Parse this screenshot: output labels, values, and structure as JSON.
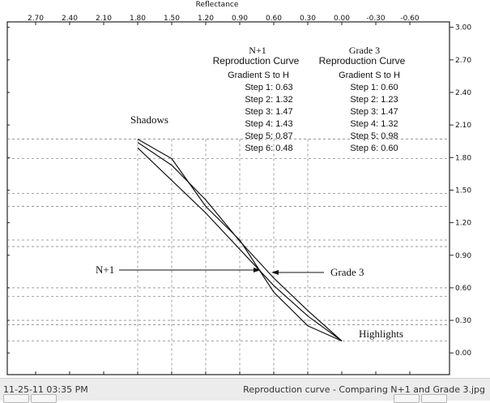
{
  "chart_data": {
    "type": "line",
    "top_axis_label": "Reflectance",
    "x_ticks": [
      "2.70",
      "2.40",
      "2.10",
      "1.80",
      "1.50",
      "1.20",
      "0.90",
      "0.60",
      "0.30",
      "0.00",
      "-0.30",
      "-0.60"
    ],
    "y_ticks": [
      "3.00",
      "2.70",
      "2.40",
      "2.10",
      "1.80",
      "1.50",
      "1.20",
      "0.90",
      "0.60",
      "0.30",
      "0.00"
    ],
    "xlim": [
      2.95,
      -0.95
    ],
    "ylim": [
      -0.2,
      3.05
    ],
    "grid": "dashed reference lines",
    "series": [
      {
        "name": "N+1",
        "points": [
          [
            1.8,
            1.97
          ],
          [
            1.5,
            1.79
          ],
          [
            1.2,
            1.35
          ],
          [
            0.9,
            1.04
          ],
          [
            0.6,
            0.56
          ],
          [
            0.3,
            0.25
          ],
          [
            0.0,
            0.11
          ]
        ]
      },
      {
        "name": "Grade 3",
        "points": [
          [
            1.8,
            1.94
          ],
          [
            1.5,
            1.73
          ],
          [
            1.2,
            1.41
          ],
          [
            0.9,
            1.03
          ],
          [
            0.6,
            0.69
          ],
          [
            0.3,
            0.39
          ],
          [
            0.0,
            0.11
          ]
        ]
      },
      {
        "name": "",
        "points": [
          [
            1.8,
            1.89
          ],
          [
            1.2,
            1.29
          ],
          [
            0.6,
            0.62
          ],
          [
            0.3,
            0.34
          ],
          [
            0.0,
            0.11
          ]
        ]
      }
    ],
    "annotations": {
      "left": {
        "title": "N+1",
        "subtitle": "Reproduction Curve",
        "heading": "Gradient S to H",
        "steps": [
          "Step 1: 0.63",
          "Step 2: 1.32",
          "Step 3: 1.47",
          "Step 4: 1.43",
          "Step 5: 0.87",
          "Step 6: 0.48"
        ]
      },
      "right": {
        "title": "Grade 3",
        "subtitle": "Reproduction Curve",
        "heading": "Gradient S to H",
        "steps": [
          "Step 1: 0.60",
          "Step 2: 1.23",
          "Step 3: 1.47",
          "Step 4: 1.32",
          "Step 5: 0.98",
          "Step 6: 0.60"
        ]
      },
      "shadows": "Shadows",
      "highlights": "Highlights",
      "n1_pointer": "N+1",
      "grade3_pointer": "Grade 3"
    },
    "dashed_guides": {
      "horizontal": [
        1.97,
        1.79,
        1.47,
        1.35,
        1.04,
        0.98,
        0.6,
        0.52,
        0.3,
        0.26,
        0.11
      ],
      "vertical": [
        1.8,
        1.5,
        1.2,
        0.9,
        0.6,
        0.3
      ]
    }
  },
  "status": {
    "left": "11-25-11 03:35 PM",
    "right": "Reproduction curve - Comparing N+1 and Grade 3.jpg"
  }
}
